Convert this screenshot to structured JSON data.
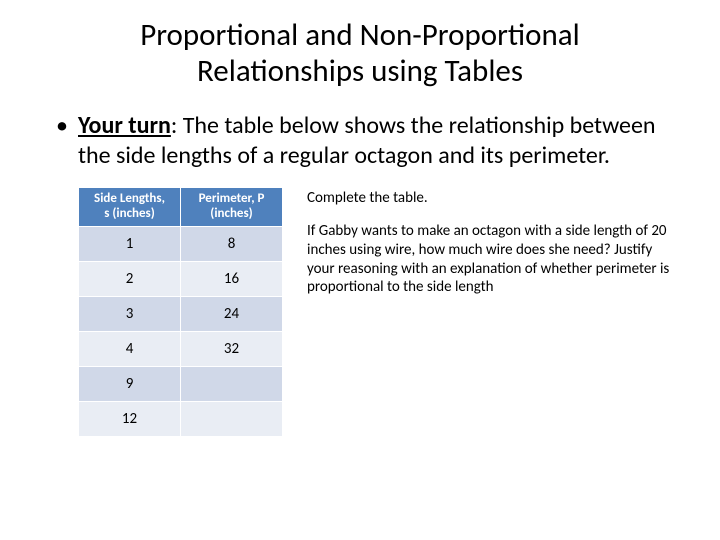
{
  "title_line1": "Proportional and Non-Proportional",
  "title_line2": "Relationships using Tables",
  "bullet": {
    "lead": "Your turn",
    "rest": ": The table below shows the relationship between the side lengths of a regular octagon and its perimeter."
  },
  "table": {
    "header_side_l1": "Side Lengths,",
    "header_side_l2": "s (inches)",
    "header_perim_l1": "Perimeter, P",
    "header_perim_l2": "(inches)",
    "rows": [
      {
        "side": "1",
        "perim": "8",
        "band": "band-a"
      },
      {
        "side": "2",
        "perim": "16",
        "band": "band-b"
      },
      {
        "side": "3",
        "perim": "24",
        "band": "band-a"
      },
      {
        "side": "4",
        "perim": "32",
        "band": "band-b"
      },
      {
        "side": "9",
        "perim": "",
        "band": "band-a"
      },
      {
        "side": "12",
        "perim": "",
        "band": "band-b"
      }
    ],
    "colors": {
      "header_bg": "#4f81bd",
      "header_fg": "#ffffff",
      "band_a": "#d0d8e8",
      "band_b": "#e9edf4",
      "border": "#ffffff"
    }
  },
  "right": {
    "p1": "Complete the table.",
    "p2": "If Gabby wants to make an octagon with a side length of 20 inches using wire, how much wire does she need? Justify your reasoning with an explanation of whether perimeter is proportional to the side length"
  }
}
